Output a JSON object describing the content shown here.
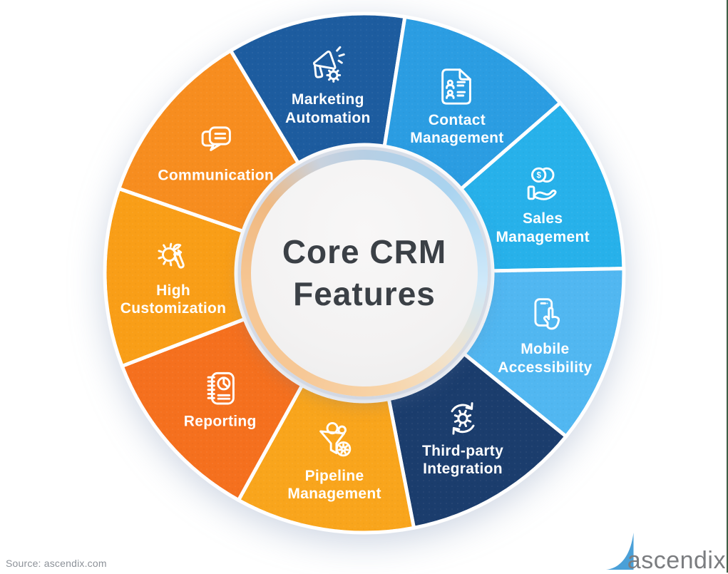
{
  "page": {
    "source_note": "Source: ascendix.com"
  },
  "center": {
    "title": "Core CRM\nFeatures",
    "title_color": "#3b4046"
  },
  "wheel": {
    "segments": [
      {
        "name": "marketing-automation",
        "label": "Marketing\nAutomation",
        "icon": "megaphone-gear-icon",
        "color": "#1d5c9f"
      },
      {
        "name": "contact-management",
        "label": "Contact\nManagement",
        "icon": "contact-document-icon",
        "color": "#2b9de2"
      },
      {
        "name": "sales-management",
        "label": "Sales\nManagement",
        "icon": "coins-hand-icon",
        "color": "#27b1ea"
      },
      {
        "name": "mobile-accessibility",
        "label": "Mobile\nAccessibility",
        "icon": "phone-touch-icon",
        "color": "#51b7f1"
      },
      {
        "name": "third-party-integration",
        "label": "Third-party\nIntegration",
        "icon": "gear-sync-icon",
        "color": "#1b3d6d"
      },
      {
        "name": "pipeline-management",
        "label": "Pipeline\nManagement",
        "icon": "funnel-gear-icon",
        "color": "#f9a51c"
      },
      {
        "name": "reporting",
        "label": "Reporting",
        "icon": "notebook-chart-icon",
        "color": "#f5701e"
      },
      {
        "name": "high-customization",
        "label": "High\nCustomization",
        "icon": "gear-wrench-icon",
        "color": "#f99e17"
      },
      {
        "name": "communication",
        "label": "Communication",
        "icon": "chat-bubbles-icon",
        "color": "#f78d1f"
      }
    ],
    "icon_glyphs": {
      "dollar": "$"
    }
  },
  "logo": {
    "text": "ascendix",
    "swoosh_color": "#4aa0d8",
    "text_color": "#7b7d80"
  }
}
